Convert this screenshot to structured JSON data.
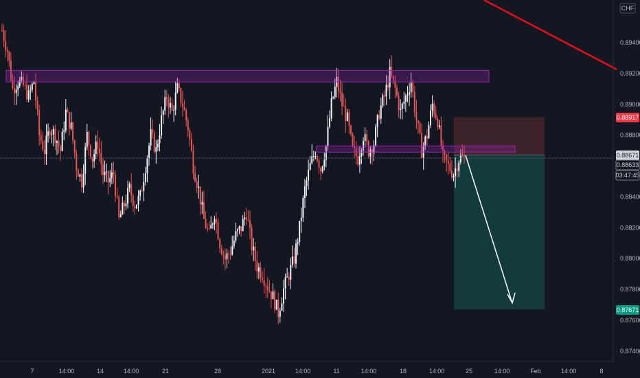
{
  "currency_label": "CHF",
  "colors": {
    "background": "#131722",
    "up": "#f0f3fa",
    "down": "#ef5350",
    "zone": "#9c27b0",
    "trendline": "#e5101c",
    "target_zone": "#133a3d",
    "stop_zone": "#3d2229",
    "arrow": "#ffffff"
  },
  "chart_data": {
    "type": "candlestick",
    "symbol_currency": "CHF",
    "y_axis": {
      "side": "right",
      "range": [
        0.873,
        0.896
      ],
      "ticks": [
        "0.89400",
        "0.89200",
        "0.89000",
        "0.88800",
        "0.88400",
        "0.88200",
        "0.88000",
        "0.87800",
        "0.87600",
        "0.87400"
      ]
    },
    "x_axis": {
      "ticks": [
        "7",
        "14:00",
        "14",
        "14:00",
        "21",
        "28",
        "2021",
        "14:00",
        "11",
        "14:00",
        "18",
        "14:00",
        "25",
        "14:00",
        "Feb",
        "14:00",
        "8"
      ]
    },
    "price_badges": [
      {
        "label": "0.88917",
        "value": 0.88917,
        "role": "stop"
      },
      {
        "label": "0.88671",
        "value": 0.88671,
        "role": "entry"
      },
      {
        "label": "0.88633",
        "value": 0.88633,
        "role": "last"
      },
      {
        "label": "03:47:45",
        "value": 0.88633,
        "role": "countdown"
      },
      {
        "label": "0.87671",
        "value": 0.87671,
        "role": "target"
      }
    ],
    "last_price": 0.88633,
    "zones": [
      {
        "name": "resistance",
        "top": 0.8922,
        "bottom": 0.89145
      },
      {
        "name": "support",
        "top": 0.8873,
        "bottom": 0.8869
      }
    ],
    "position": {
      "direction": "short",
      "entry": 0.88671,
      "stop": 0.88917,
      "target": 0.87671
    },
    "close_path": [
      0.8948,
      0.8935,
      0.891,
      0.8915,
      0.8912,
      0.8905,
      0.8915,
      0.888,
      0.887,
      0.8885,
      0.888,
      0.887,
      0.8895,
      0.8885,
      0.886,
      0.885,
      0.888,
      0.8865,
      0.8875,
      0.8855,
      0.885,
      0.8855,
      0.8825,
      0.8835,
      0.8845,
      0.8835,
      0.884,
      0.886,
      0.888,
      0.887,
      0.889,
      0.8905,
      0.8895,
      0.891,
      0.89,
      0.8885,
      0.886,
      0.8845,
      0.8825,
      0.8815,
      0.883,
      0.881,
      0.88,
      0.8805,
      0.8815,
      0.882,
      0.883,
      0.8808,
      0.8795,
      0.879,
      0.8782,
      0.8775,
      0.8765,
      0.878,
      0.879,
      0.88,
      0.882,
      0.8845,
      0.886,
      0.887,
      0.8858,
      0.8873,
      0.89,
      0.8915,
      0.89,
      0.889,
      0.887,
      0.8865,
      0.888,
      0.887,
      0.8875,
      0.8895,
      0.8905,
      0.892,
      0.891,
      0.8895,
      0.8905,
      0.8915,
      0.889,
      0.887,
      0.888,
      0.89,
      0.889,
      0.8865,
      0.886,
      0.8855,
      0.8865,
      0.8865
    ],
    "title": ""
  }
}
